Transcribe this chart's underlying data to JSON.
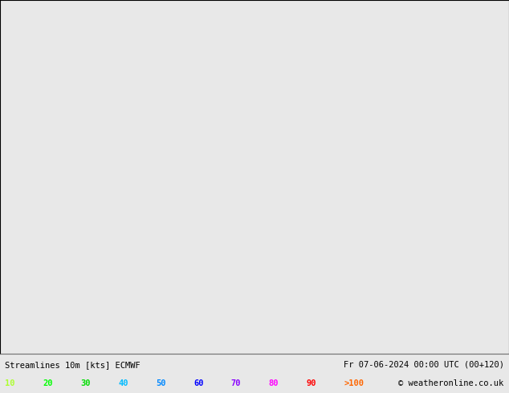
{
  "title_left": "Streamlines 10m [kts] ECMWF",
  "title_right": "Fr 07-06-2024 00:00 UTC (00+120)",
  "copyright": "© weatheronline.co.uk",
  "legend_values": [
    "10",
    "20",
    "30",
    "40",
    "50",
    "60",
    "70",
    "80",
    "90",
    ">100"
  ],
  "legend_colors": [
    "#adff2f",
    "#00ff00",
    "#00dd00",
    "#00bbff",
    "#0088ff",
    "#0000ff",
    "#8800ff",
    "#ff00ff",
    "#ff0000",
    "#ff6600"
  ],
  "bg_color": "#e8e8e8",
  "land_color": "#ccffcc",
  "border_color": "#888888",
  "figsize": [
    6.34,
    4.9
  ],
  "dpi": 100,
  "map_extent": [
    -170,
    -50,
    15,
    85
  ],
  "bottom_bar_color": "#d0d0d0",
  "text_color": "#000000",
  "label_fontsize": 7.5,
  "title_fontsize": 7.5
}
